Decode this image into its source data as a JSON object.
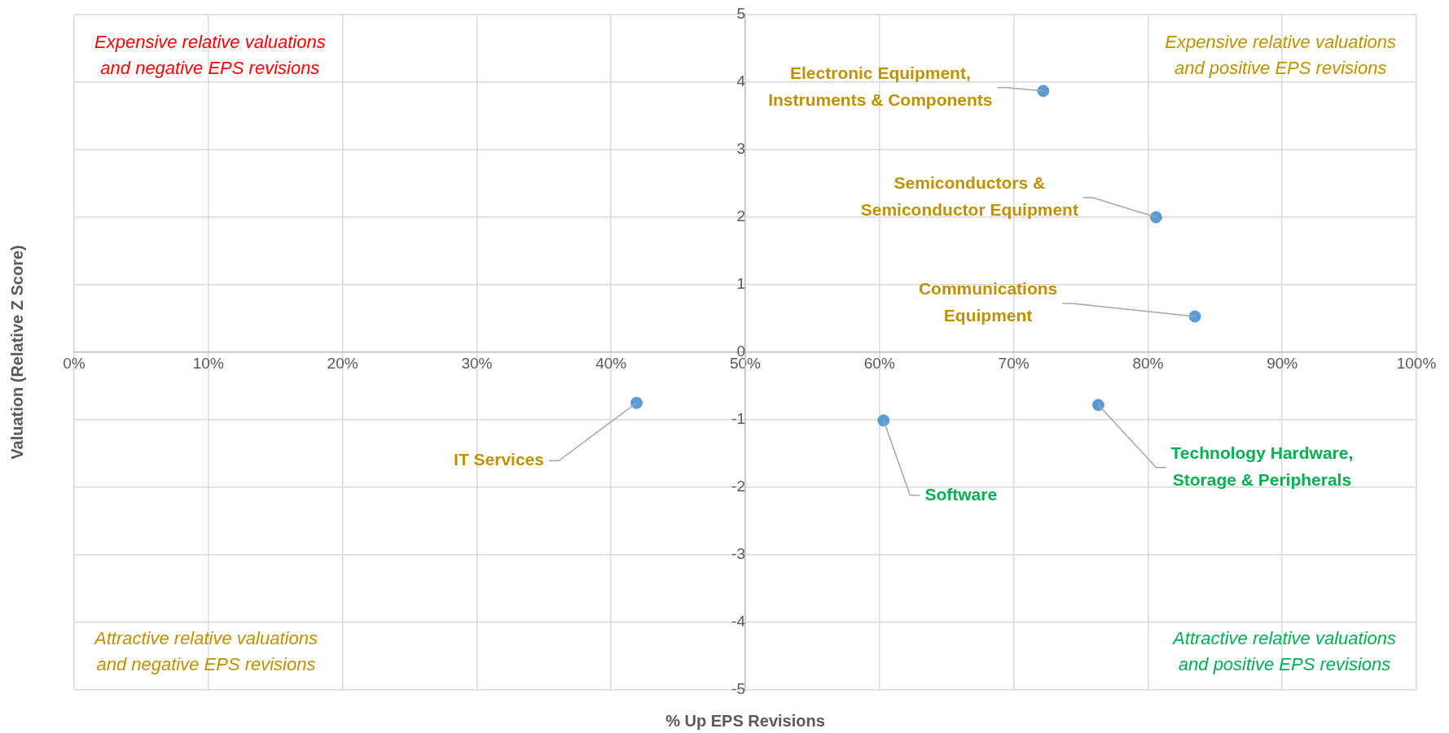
{
  "chart_data": {
    "type": "scatter",
    "xlabel": "% Up EPS Revisions",
    "ylabel": "Valuation (Relative Z Score)",
    "x": [
      72.2,
      80.6,
      83.5,
      41.9,
      60.3,
      76.3
    ],
    "series": [
      {
        "color": "#5b9bd5",
        "values": [
          3.87,
          2.0,
          0.53,
          -0.75,
          -1.01,
          -0.78
        ]
      }
    ],
    "marker": "circle",
    "grid": true,
    "xlim": [
      0,
      100
    ],
    "ylim": [
      -5,
      5
    ],
    "xticks": [
      {
        "value": 0,
        "label": "0%"
      },
      {
        "value": 10,
        "label": "10%"
      },
      {
        "value": 20,
        "label": "20%"
      },
      {
        "value": 30,
        "label": "30%"
      },
      {
        "value": 40,
        "label": "40%"
      },
      {
        "value": 50,
        "label": "50%"
      },
      {
        "value": 60,
        "label": "60%"
      },
      {
        "value": 70,
        "label": "70%"
      },
      {
        "value": 80,
        "label": "80%"
      },
      {
        "value": 90,
        "label": "90%"
      },
      {
        "value": 100,
        "label": "100%"
      }
    ],
    "yticks": [
      -5,
      -4,
      -3,
      -2,
      -1,
      0,
      1,
      2,
      3,
      4,
      5
    ],
    "annotations": [
      {
        "text": "Electronic Equipment,\nInstruments & Components",
        "x": 72.2,
        "y": 3.87
      },
      {
        "text": "Semiconductors &\nSemiconductor Equipment",
        "x": 80.6,
        "y": 2.0
      },
      {
        "text": "Communications\nEquipment",
        "x": 83.5,
        "y": 0.53
      },
      {
        "text": "IT Services",
        "x": 41.9,
        "y": -0.75
      },
      {
        "text": "Software",
        "x": 60.3,
        "y": -1.01
      },
      {
        "text": "Technology Hardware,\nStorage & Peripherals",
        "x": 76.3,
        "y": -0.78
      },
      "Expensive relative valuations\nand negative EPS revisions",
      "Expensive relative valuations\nand positive EPS revisions",
      "Attractive relative valuations\nand negative EPS revisions",
      "Attractive relative valuations\nand positive EPS revisions"
    ]
  }
}
